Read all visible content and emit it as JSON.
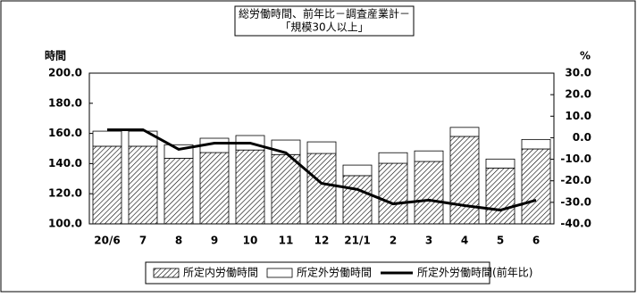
{
  "chart_data": {
    "type": "bar",
    "title": "総労働時間、前年比－調査産業計－",
    "subtitle": "「規模30人以上」",
    "ylabel": "時間",
    "y2label": "%",
    "categories": [
      "20/6",
      "7",
      "8",
      "9",
      "10",
      "11",
      "12",
      "21/1",
      "2",
      "3",
      "4",
      "5",
      "6"
    ],
    "series": [
      {
        "name": "所定内労働時間",
        "type": "bar",
        "color": "#000000",
        "hatch": true,
        "values": [
          151.5,
          151.5,
          143.5,
          147.3,
          149,
          146,
          146.7,
          132,
          140.2,
          141.4,
          158,
          137,
          149.7
        ]
      },
      {
        "name": "所定外労働時間",
        "type": "bar",
        "color": "#ffffff",
        "values": [
          10,
          10,
          9,
          9.5,
          9.6,
          9.6,
          7.7,
          7,
          7,
          7,
          6,
          6,
          6.3
        ]
      },
      {
        "name": "所定外労働時間(前年比)",
        "type": "line",
        "axis": "y2",
        "color": "#000000",
        "values": [
          3.7,
          3.7,
          -5.4,
          -2.5,
          -2.5,
          -7,
          -21.2,
          -24,
          -30.7,
          -29,
          -31.5,
          -33.6,
          -29
        ]
      }
    ],
    "stacked": true,
    "ylim": [
      100,
      200
    ],
    "yticks": [
      {
        "value": 100,
        "label": "100.0"
      },
      {
        "value": 120,
        "label": "120.0"
      },
      {
        "value": 140,
        "label": "140.0"
      },
      {
        "value": 160,
        "label": "160.0"
      },
      {
        "value": 180,
        "label": "180.0"
      },
      {
        "value": 200,
        "label": "200.0"
      }
    ],
    "y2lim": [
      -40,
      30
    ],
    "y2ticks": [
      {
        "value": -40,
        "label": "-40.0"
      },
      {
        "value": -30,
        "label": "-30.0"
      },
      {
        "value": -20,
        "label": "-20.0"
      },
      {
        "value": -10,
        "label": "-10.0"
      },
      {
        "value": 0,
        "label": "0.0"
      },
      {
        "value": 10,
        "label": "10.0"
      },
      {
        "value": 20,
        "label": "20.0"
      },
      {
        "value": 30,
        "label": "30.0"
      }
    ],
    "grid": false,
    "legend": "bottom"
  }
}
